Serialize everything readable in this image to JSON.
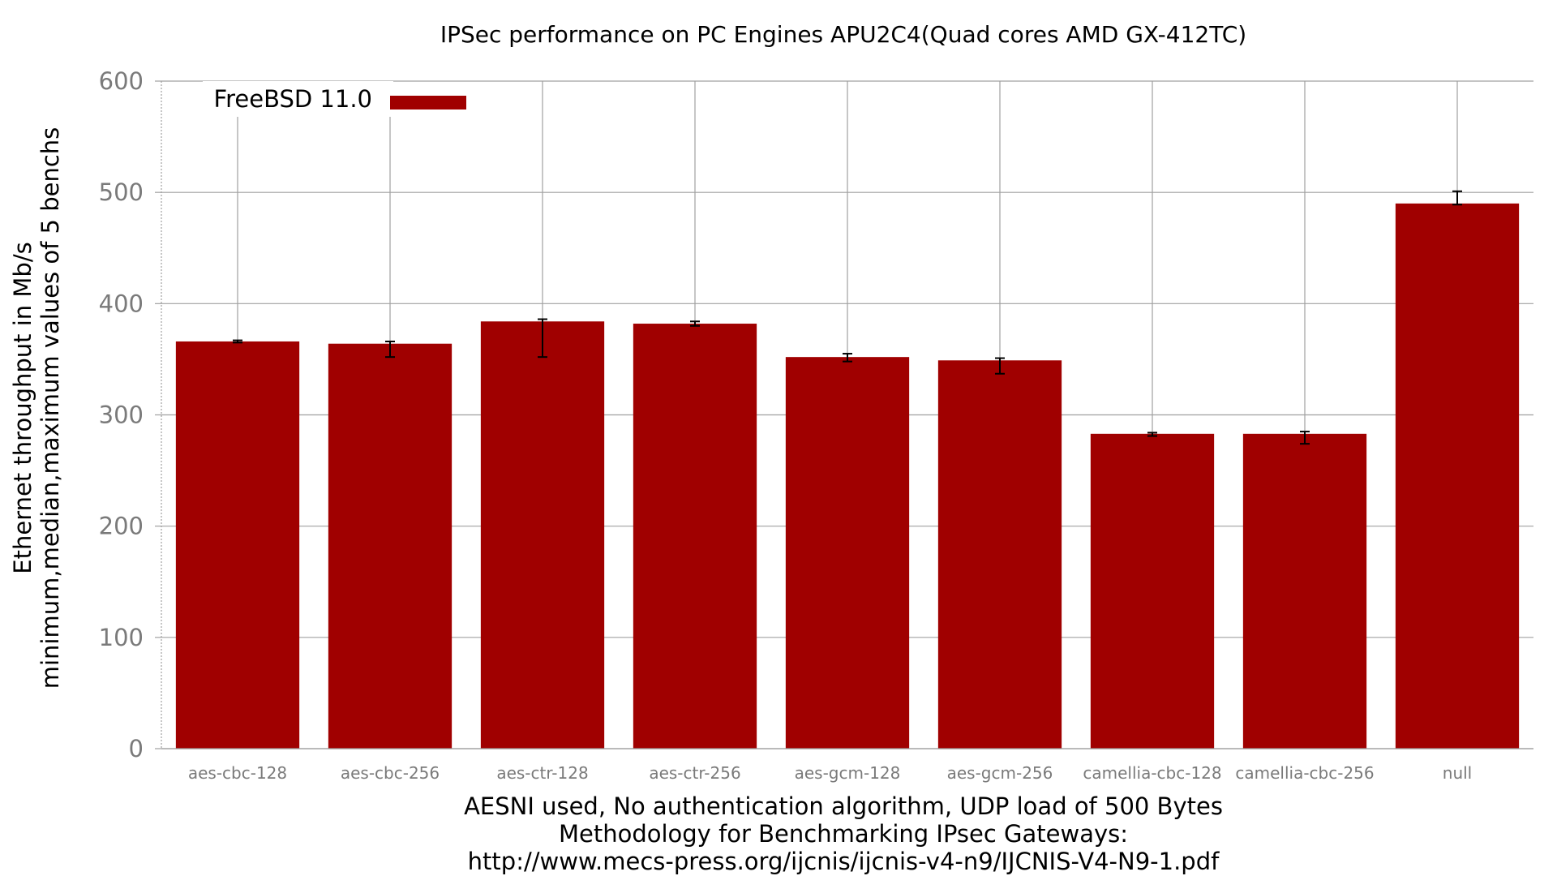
{
  "chart_data": {
    "type": "bar",
    "title": "IPSec performance on PC Engines APU2C4(Quad cores AMD GX-412TC)",
    "ylabel_lines": [
      "Ethernet throughput in Mb/s",
      "minimum,median,maximum values of 5 benchs"
    ],
    "xlabel_lines": [
      "AESNI used, No authentication algorithm, UDP load of 500 Bytes",
      "Methodology for Benchmarking IPsec Gateways:",
      "http://www.mecs-press.org/ijcnis/ijcnis-v4-n9/IJCNIS-V4-N9-1.pdf"
    ],
    "ylim": [
      0,
      600
    ],
    "yticks": [
      0,
      100,
      200,
      300,
      400,
      500,
      600
    ],
    "grid": true,
    "legend_position": "top-left",
    "categories": [
      "aes-cbc-128",
      "aes-cbc-256",
      "aes-ctr-128",
      "aes-ctr-256",
      "aes-gcm-128",
      "aes-gcm-256",
      "camellia-cbc-128",
      "camellia-cbc-256",
      "null"
    ],
    "series": [
      {
        "name": "FreeBSD 11.0",
        "color": "#a00000",
        "values": [
          366,
          364,
          384,
          382,
          352,
          349,
          283,
          283,
          490
        ],
        "min": [
          365,
          352,
          352,
          380,
          348,
          337,
          281,
          274,
          489
        ],
        "max": [
          367,
          366,
          386,
          384,
          355,
          351,
          284,
          285,
          501
        ]
      }
    ]
  }
}
